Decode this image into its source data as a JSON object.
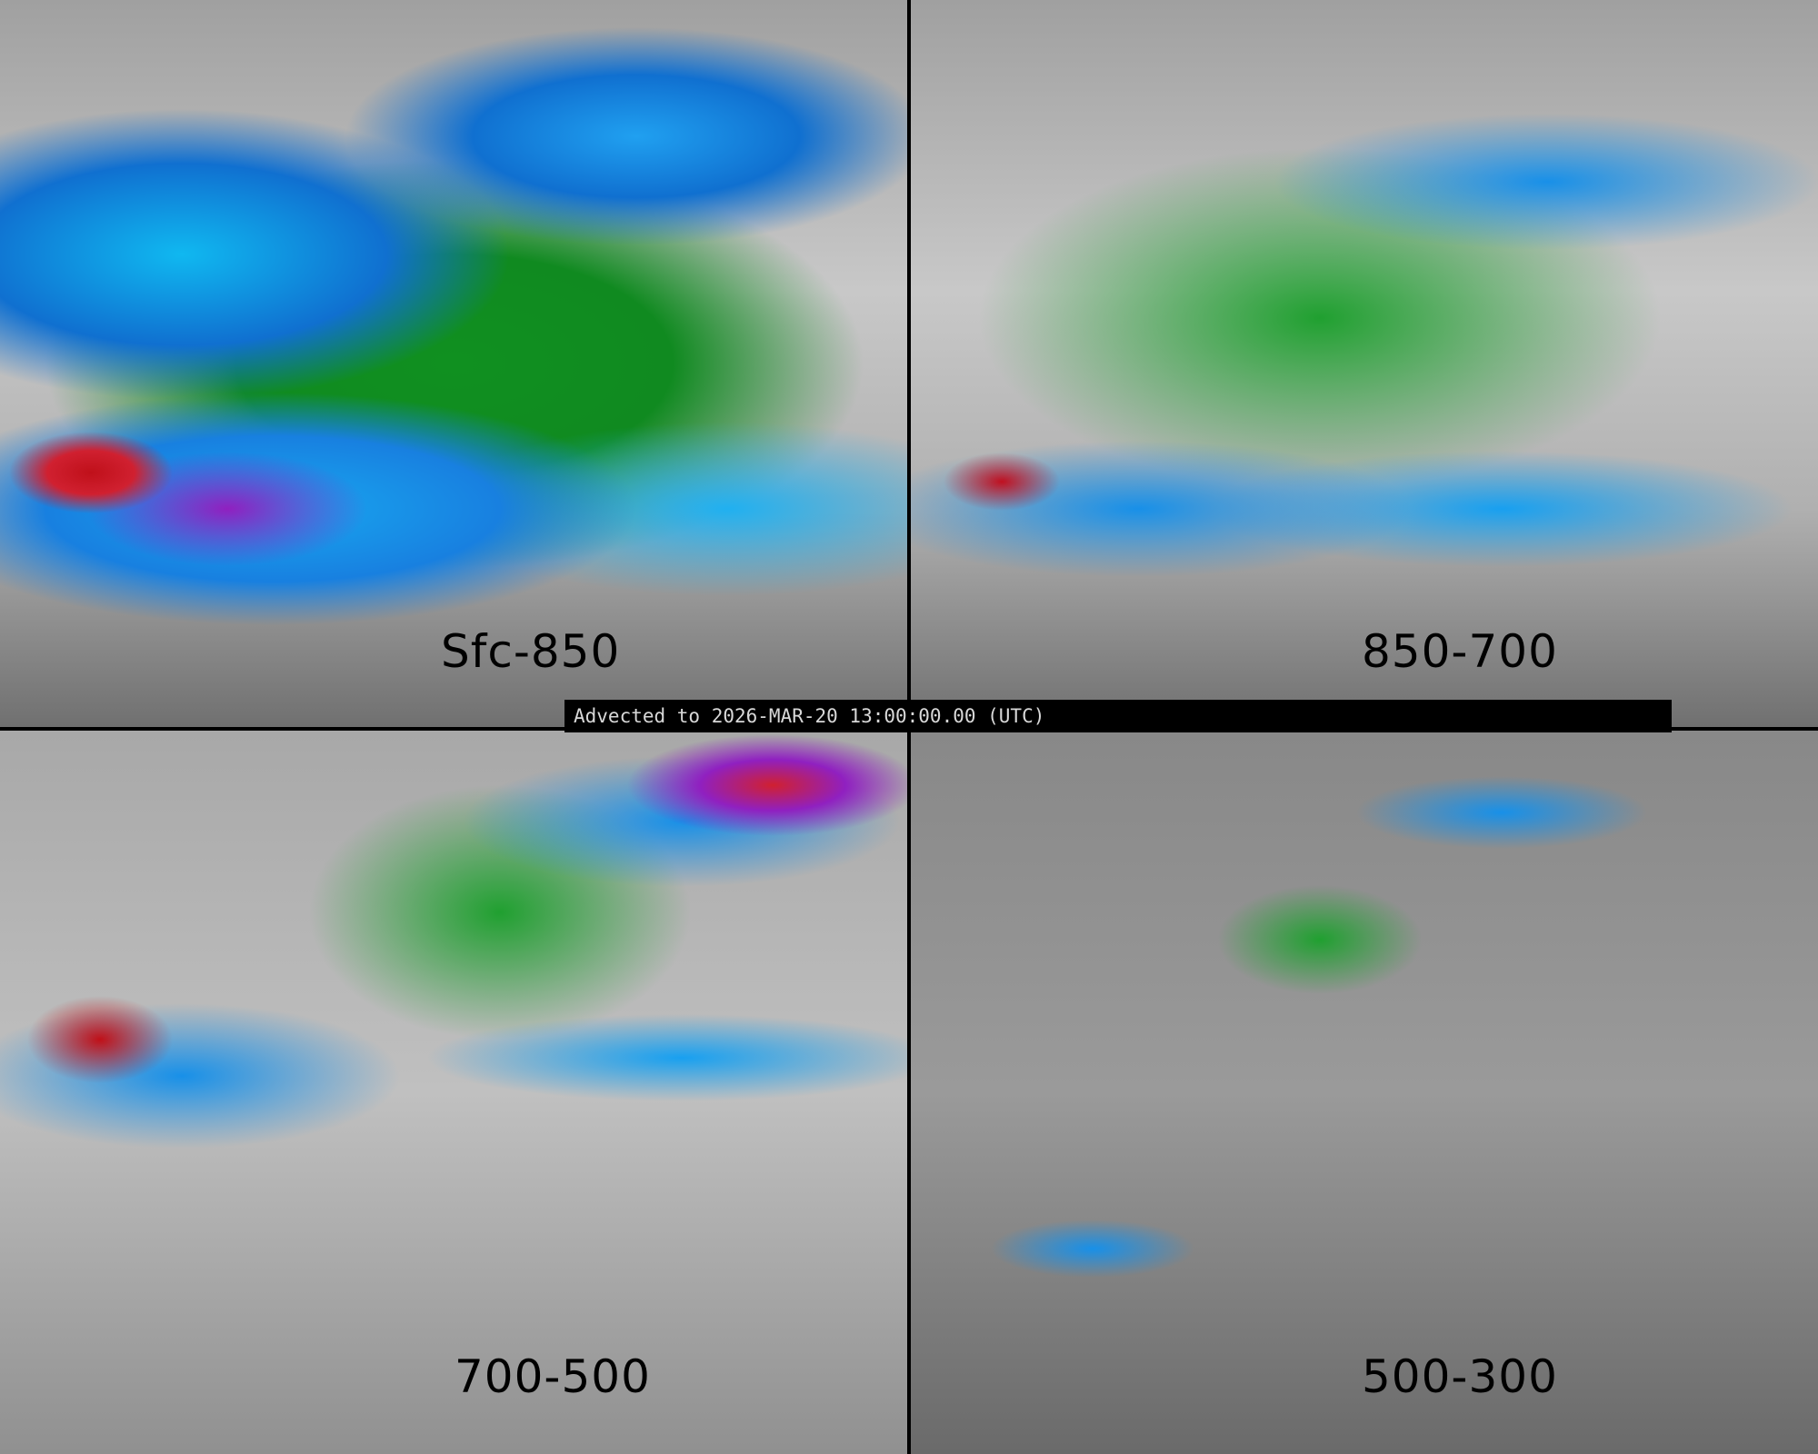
{
  "banner": {
    "text": "Advected to 2026-MAR-20 13:00:00.00 (UTC)"
  },
  "panels": [
    {
      "label": "Sfc-850"
    },
    {
      "label": "850-700"
    },
    {
      "label": "700-500"
    },
    {
      "label": "500-300"
    }
  ],
  "colors": {
    "low": "#808080",
    "green": "#109020",
    "blue": "#1890e8",
    "cyan": "#10b8f0",
    "purple": "#9020c0",
    "red": "#c01020"
  }
}
